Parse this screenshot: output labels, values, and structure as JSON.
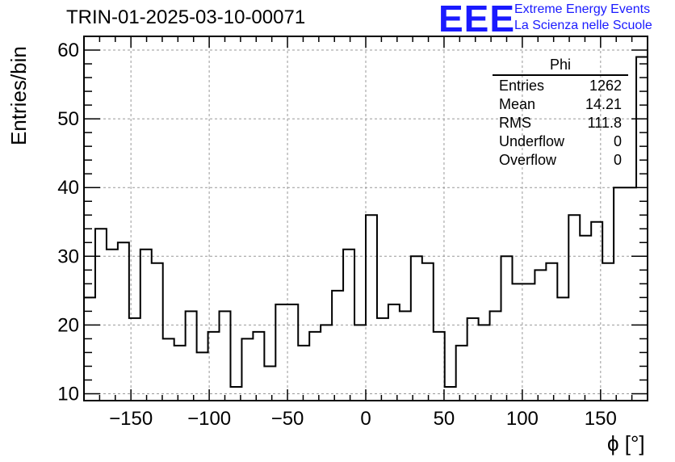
{
  "header": {
    "title": "TRIN-01-2025-03-10-00071",
    "logo_mark": "EEE",
    "logo_line1": "Extreme Energy Events",
    "logo_line2": "La Scienza nelle Scuole",
    "brand_color": "#1a1aff"
  },
  "stats": {
    "name": "Phi",
    "rows": [
      {
        "label": "Entries",
        "value": "1262"
      },
      {
        "label": "Mean",
        "value": "14.21"
      },
      {
        "label": "RMS",
        "value": "111.8"
      },
      {
        "label": "Underflow",
        "value": "0"
      },
      {
        "label": "Overflow",
        "value": "0"
      }
    ]
  },
  "chart_data": {
    "type": "bar",
    "histogram": true,
    "title": "TRIN-01-2025-03-10-00071",
    "xlabel": "ϕ [°]",
    "ylabel": "Entries/bin",
    "xlim": [
      -180,
      180
    ],
    "ylim": [
      9,
      62
    ],
    "bin_width": 7.2,
    "x_ticks": [
      -150,
      -100,
      -50,
      0,
      50,
      100,
      150
    ],
    "x_tick_labels": [
      "−150",
      "−100",
      "−50",
      "0",
      "50",
      "100",
      "150"
    ],
    "y_ticks": [
      10,
      20,
      30,
      40,
      50,
      60
    ],
    "y_tick_labels": [
      "10",
      "20",
      "30",
      "40",
      "50",
      "60"
    ],
    "grid": true,
    "values": [
      24,
      34,
      31,
      32,
      21,
      31,
      29,
      18,
      17,
      22,
      16,
      19,
      22,
      11,
      18,
      19,
      14,
      23,
      23,
      17,
      19,
      20,
      25,
      31,
      20,
      36,
      21,
      23,
      22,
      30,
      29,
      19,
      11,
      17,
      21,
      20,
      22,
      30,
      26,
      26,
      28,
      29,
      24,
      36,
      33,
      35,
      29,
      40,
      40,
      59
    ],
    "line_color": "#000000"
  }
}
